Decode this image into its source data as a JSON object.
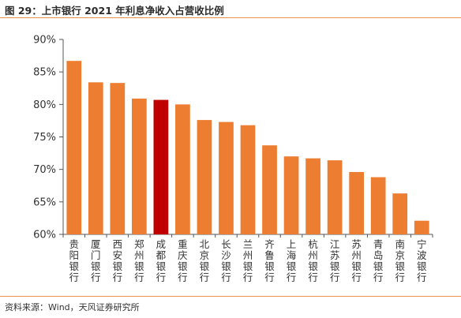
{
  "figure": {
    "title": "图 29：上市银行 2021 年利息净收入占营收比例",
    "source": "资料来源：Wind，天风证券研究所"
  },
  "colors": {
    "bar": "#ed7d31",
    "highlight": "#c00000",
    "axis": "#555555",
    "rule": "#e8914a"
  },
  "chart_data": {
    "type": "bar",
    "title": "",
    "xlabel": "",
    "ylabel": "",
    "ylim": [
      0.6,
      0.9
    ],
    "yticks": [
      0.6,
      0.65,
      0.7,
      0.75,
      0.8,
      0.85,
      0.9
    ],
    "ytick_labels": [
      "60%",
      "65%",
      "70%",
      "75%",
      "80%",
      "85%",
      "90%"
    ],
    "grid": false,
    "legend": "none",
    "highlight_category": "成都银行",
    "categories": [
      "贵阳银行",
      "厦门银行",
      "西安银行",
      "郑州银行",
      "成都银行",
      "重庆银行",
      "北京银行",
      "长沙银行",
      "兰州银行",
      "齐鲁银行",
      "上海银行",
      "杭州银行",
      "江苏银行",
      "苏州银行",
      "青岛银行",
      "南京银行",
      "宁波银行"
    ],
    "values": [
      0.867,
      0.834,
      0.833,
      0.809,
      0.807,
      0.8,
      0.776,
      0.773,
      0.768,
      0.737,
      0.72,
      0.717,
      0.714,
      0.696,
      0.688,
      0.663,
      0.621
    ]
  }
}
